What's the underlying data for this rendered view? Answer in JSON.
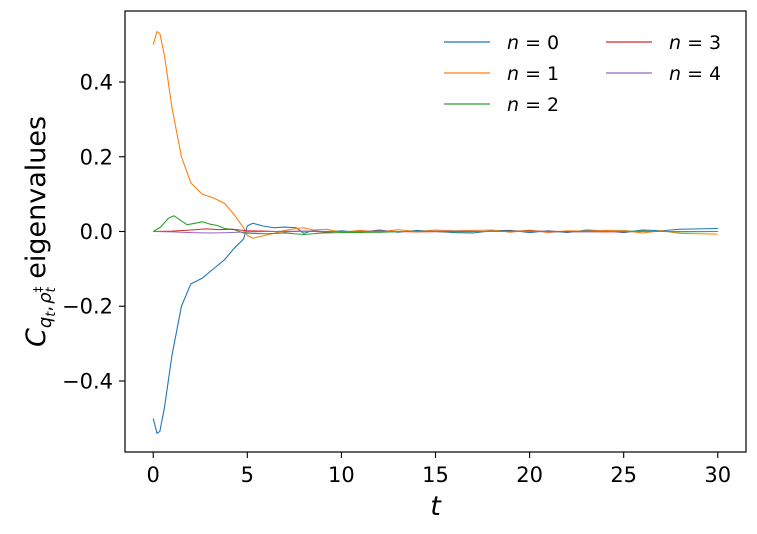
{
  "chart_data": {
    "type": "line",
    "xlabel": "t",
    "ylabel": "C_{q_t, ρ_t^‡} eigenvalues",
    "ylabel_parts": {
      "base": "C",
      "sub1": "q",
      "sub1sub": "t",
      "comma": ",",
      "sub2": "ρ",
      "sub2sub": "t",
      "sub2sup": "‡",
      "rest": "eigenvalues"
    },
    "xlim": [
      -1.5,
      31.5
    ],
    "ylim": [
      -0.59,
      0.59
    ],
    "xticks": [
      0,
      5,
      10,
      15,
      20,
      25,
      30
    ],
    "xtick_labels": [
      "0",
      "5",
      "10",
      "15",
      "20",
      "25",
      "30"
    ],
    "yticks": [
      -0.4,
      -0.2,
      0.0,
      0.2,
      0.4
    ],
    "ytick_labels": [
      "−0.4",
      "−0.2",
      "0.0",
      "0.2",
      "0.4"
    ],
    "grid": false,
    "legend": {
      "placement": "top-right",
      "columns": 2
    },
    "series": [
      {
        "name": "n = 0",
        "label_var": "n",
        "label_eq": " = ",
        "label_num": "0",
        "color": "#1f77b4",
        "x": [
          0,
          0.2,
          0.35,
          0.6,
          1.0,
          1.5,
          2.0,
          2.6,
          3.2,
          3.8,
          4.3,
          4.8,
          5.0,
          5.3,
          5.8,
          6.4,
          7.0,
          7.6,
          8.0,
          8.5,
          9.2,
          10,
          11,
          12,
          13,
          14,
          15,
          16,
          17,
          18,
          19,
          20,
          21,
          22,
          23,
          24,
          25,
          26,
          27,
          28,
          29,
          30
        ],
        "y": [
          -0.5,
          -0.54,
          -0.535,
          -0.47,
          -0.33,
          -0.2,
          -0.14,
          -0.125,
          -0.1,
          -0.075,
          -0.045,
          -0.02,
          0.015,
          0.022,
          0.015,
          0.01,
          0.012,
          0.01,
          -0.005,
          0.003,
          -0.002,
          0.002,
          -0.003,
          0.004,
          -0.002,
          0.003,
          0.0,
          -0.003,
          -0.004,
          0.002,
          0.003,
          -0.003,
          0.002,
          -0.003,
          0.004,
          0.002,
          -0.003,
          0.004,
          0.002,
          0.006,
          0.007,
          0.008
        ]
      },
      {
        "name": "n = 1",
        "label_var": "n",
        "label_eq": " = ",
        "label_num": "1",
        "color": "#ff7f0e",
        "x": [
          0,
          0.2,
          0.35,
          0.6,
          1.0,
          1.5,
          2.0,
          2.6,
          3.2,
          3.8,
          4.3,
          4.8,
          5.0,
          5.3,
          5.8,
          6.4,
          7.0,
          7.6,
          8.0,
          8.5,
          9.2,
          10,
          11,
          12,
          13,
          14,
          15,
          16,
          17,
          18,
          19,
          20,
          21,
          22,
          23,
          24,
          25,
          26,
          27,
          28,
          29,
          30
        ],
        "y": [
          0.5,
          0.535,
          0.53,
          0.47,
          0.33,
          0.2,
          0.13,
          0.1,
          0.09,
          0.075,
          0.045,
          0.01,
          -0.01,
          -0.018,
          -0.012,
          -0.005,
          0.003,
          0.008,
          0.01,
          0.004,
          0.006,
          -0.002,
          0.003,
          -0.002,
          0.005,
          0.0,
          0.004,
          0.002,
          0.003,
          0.004,
          -0.002,
          0.004,
          -0.003,
          0.002,
          0.001,
          0.003,
          0.003,
          -0.004,
          0.002,
          -0.005,
          -0.006,
          -0.007
        ]
      },
      {
        "name": "n = 2",
        "label_var": "n",
        "label_eq": " = ",
        "label_num": "2",
        "color": "#2ca02c",
        "x": [
          0,
          0.4,
          0.8,
          1.1,
          1.4,
          1.8,
          2.2,
          2.6,
          3.0,
          3.4,
          3.8,
          4.3,
          4.8,
          5.3,
          6.0,
          7.0,
          8.0,
          9.0,
          10,
          12,
          14,
          16,
          18,
          20,
          22,
          24,
          26,
          28,
          30
        ],
        "y": [
          0.0,
          0.012,
          0.035,
          0.042,
          0.032,
          0.018,
          0.022,
          0.026,
          0.02,
          0.016,
          0.008,
          0.005,
          -0.004,
          -0.005,
          -0.006,
          -0.004,
          -0.008,
          -0.004,
          -0.003,
          -0.002,
          0.001,
          -0.001,
          0.0,
          0.001,
          -0.001,
          0.0,
          0.001,
          -0.001,
          0.0
        ]
      },
      {
        "name": "n = 3",
        "label_var": "n",
        "label_eq": " = ",
        "label_num": "3",
        "color": "#d62728",
        "x": [
          0,
          1.0,
          2.0,
          2.8,
          3.5,
          4.2,
          5.0,
          6.0,
          7.0,
          8.0,
          9.0,
          10,
          12,
          14,
          16,
          18,
          20,
          22,
          24,
          26,
          28,
          30
        ],
        "y": [
          0.0,
          0.001,
          0.004,
          0.007,
          0.005,
          0.006,
          0.002,
          0.001,
          -0.001,
          0.001,
          -0.001,
          0.0,
          0.001,
          -0.001,
          0.0,
          0.0,
          0.001,
          0.0,
          -0.001,
          0.0,
          0.0,
          0.0
        ]
      },
      {
        "name": "n = 4",
        "label_var": "n",
        "label_eq": " = ",
        "label_num": "4",
        "color": "#9467bd",
        "x": [
          0,
          1.0,
          2.0,
          3.0,
          4.0,
          5.0,
          6.0,
          8.0,
          10,
          12,
          14,
          16,
          18,
          20,
          22,
          24,
          26,
          28,
          30
        ],
        "y": [
          0.0,
          -0.001,
          -0.003,
          -0.004,
          -0.003,
          -0.001,
          0.0,
          0.001,
          0.0,
          0.0,
          0.0,
          0.001,
          0.0,
          0.0,
          -0.001,
          0.0,
          0.0,
          0.0,
          0.0
        ]
      }
    ]
  }
}
